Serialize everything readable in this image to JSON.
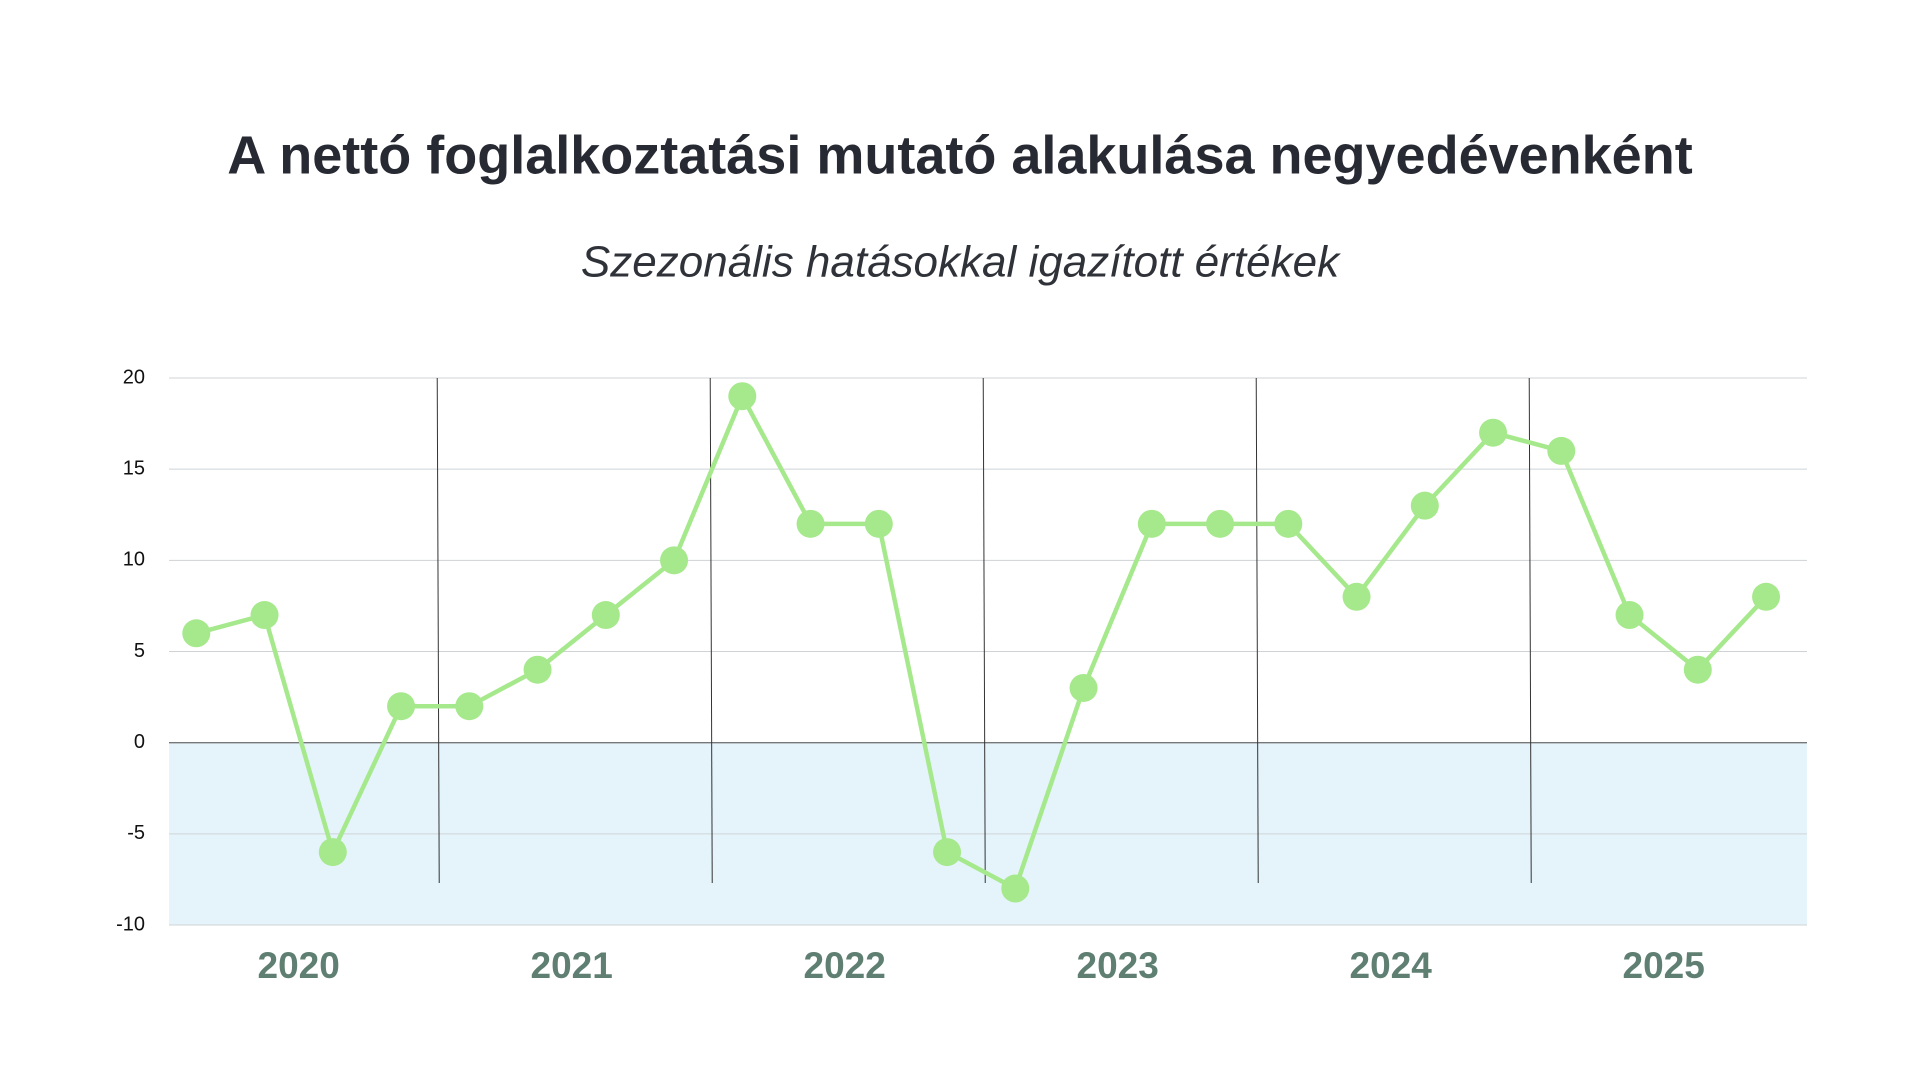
{
  "chart_data": {
    "type": "line",
    "title": "A nettó foglalkoztatási mutató alakulása negyedévenként",
    "subtitle": "Szezonális hatásokkal igazított értékek",
    "year_labels": [
      "2020",
      "2021",
      "2022",
      "2023",
      "2024",
      "2025"
    ],
    "series": [
      {
        "color": "#a6e98c",
        "values": [
          6,
          7,
          -6,
          2,
          2,
          4,
          7,
          10,
          19,
          12,
          12,
          -6,
          -8,
          3,
          12,
          12,
          12,
          8,
          13,
          17,
          16,
          7,
          4,
          8
        ]
      }
    ],
    "ylim": [
      -10,
      20
    ],
    "yticks": [
      -10,
      -5,
      0,
      5,
      10,
      15,
      20
    ],
    "grid": true,
    "negative_fill": "#e5f4fb"
  }
}
